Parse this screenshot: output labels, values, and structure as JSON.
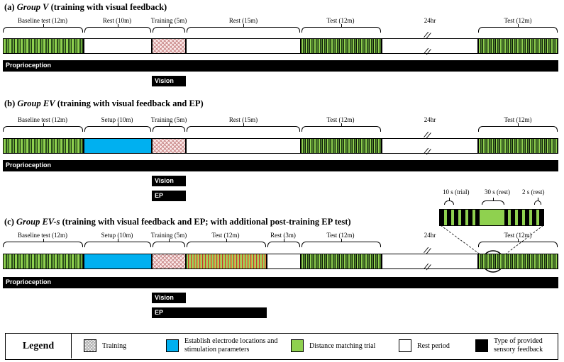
{
  "panels": [
    {
      "title_prefix": "(a) ",
      "title_group": "Group V",
      "title_rest": " (training with visual feedback)"
    },
    {
      "title_prefix": "(b) ",
      "title_group": "Group EV",
      "title_rest": " (training with visual feedback and EP)"
    },
    {
      "title_prefix": "(c) ",
      "title_group": "Group EV-s",
      "title_rest": " (training with visual feedback and EP; with additional post-training EP test)"
    }
  ],
  "labels": {
    "baseline": "Baseline  test (12m)",
    "rest10": "Rest (10m)",
    "setup10": "Setup (10m)",
    "training5": "Training (5m)",
    "rest15": "Rest (15m)",
    "test12": "Test (12m)",
    "rest3": "Rest (3m)",
    "hr24": "24hr"
  },
  "feedback": {
    "proprioception": "Proprioception",
    "vision": "Vision",
    "ep": "EP"
  },
  "inset": {
    "trial": "10 s (trial)",
    "rest30": "30 s (rest)",
    "rest2": "2 s (rest)"
  },
  "legend": {
    "title": "Legend",
    "training": "Training",
    "establish": "Establish electrode locations and stimulation parameters",
    "distance": "Distance matching trial",
    "rest": "Rest period",
    "feedback_type": "Type of provided sensory feedback"
  },
  "colors": {
    "distance_trial": "#8fd14f",
    "setup": "#00b0f0",
    "feedback_bar": "#000000",
    "training_hatch": "#c98a8a"
  }
}
